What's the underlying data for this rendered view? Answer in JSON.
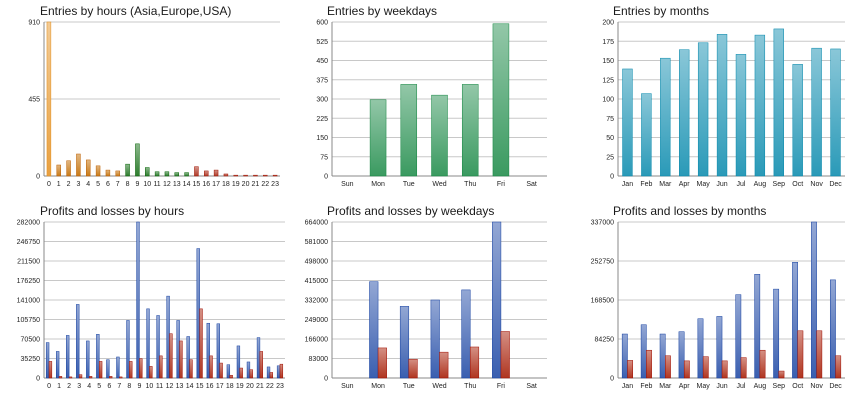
{
  "chart_data": [
    {
      "id": "hours",
      "type": "bar",
      "title": "Entries by hours (Asia,Europe,USA)",
      "categories": [
        "0",
        "1",
        "2",
        "3",
        "4",
        "5",
        "6",
        "7",
        "8",
        "9",
        "10",
        "11",
        "12",
        "13",
        "14",
        "15",
        "16",
        "17",
        "18",
        "19",
        "20",
        "21",
        "22",
        "23"
      ],
      "values": [
        910,
        65,
        90,
        130,
        95,
        60,
        35,
        30,
        70,
        190,
        50,
        25,
        25,
        20,
        20,
        55,
        30,
        35,
        12,
        5,
        5,
        5,
        5,
        5
      ],
      "bar_colors": [
        "#e8a040",
        "#c87a18",
        "#c87a18",
        "#c87a18",
        "#c87a18",
        "#c87a18",
        "#c87a18",
        "#c87a18",
        "#2e7d2e",
        "#2e7d2e",
        "#2e7d2e",
        "#2e7d2e",
        "#2e7d2e",
        "#2e7d2e",
        "#2e7d2e",
        "#b03a28",
        "#b03a28",
        "#b03a28",
        "#b03a28",
        "#b03a28",
        "#b03a28",
        "#b03a28",
        "#b03a28",
        "#b03a28"
      ],
      "ylim": [
        0,
        910
      ],
      "yticks": [
        0,
        455,
        910
      ],
      "ytick_labels": [
        "0",
        "455",
        "910"
      ],
      "grid": true
    },
    {
      "id": "weekdays",
      "type": "bar",
      "title": "Entries by weekdays",
      "categories": [
        "Sun",
        "Mon",
        "Tue",
        "Wed",
        "Thu",
        "Fri",
        "Sat"
      ],
      "values": [
        0,
        297,
        357,
        315,
        357,
        593,
        0
      ],
      "bar_colors": [
        "#3a9a60",
        "#3a9a60",
        "#3a9a60",
        "#3a9a60",
        "#3a9a60",
        "#3a9a60",
        "#3a9a60"
      ],
      "ylim": [
        0,
        600
      ],
      "yticks": [
        0,
        75,
        150,
        225,
        300,
        375,
        450,
        525,
        600
      ],
      "ytick_labels": [
        "0",
        "75",
        "150",
        "225",
        "300",
        "375",
        "450",
        "525",
        "600"
      ],
      "grid": true
    },
    {
      "id": "months",
      "type": "bar",
      "title": "Entries by months",
      "categories": [
        "Jan",
        "Feb",
        "Mar",
        "Apr",
        "May",
        "Jun",
        "Jul",
        "Aug",
        "Sep",
        "Oct",
        "Nov",
        "Dec"
      ],
      "values": [
        139,
        107,
        153,
        164,
        173,
        184,
        158,
        183,
        191,
        145,
        166,
        165
      ],
      "bar_colors": [
        "#2a9ab8",
        "#2a9ab8",
        "#2a9ab8",
        "#2a9ab8",
        "#2a9ab8",
        "#2a9ab8",
        "#2a9ab8",
        "#2a9ab8",
        "#2a9ab8",
        "#2a9ab8",
        "#2a9ab8",
        "#2a9ab8"
      ],
      "ylim": [
        0,
        200
      ],
      "yticks": [
        0,
        25,
        50,
        75,
        100,
        125,
        150,
        175,
        200
      ],
      "ytick_labels": [
        "0",
        "25",
        "50",
        "75",
        "100",
        "125",
        "150",
        "175",
        "200"
      ],
      "grid": true
    },
    {
      "id": "pl_hours",
      "type": "bar",
      "title": "Profits and losses by hours",
      "categories": [
        "0",
        "1",
        "2",
        "3",
        "4",
        "5",
        "6",
        "7",
        "8",
        "9",
        "10",
        "11",
        "12",
        "13",
        "14",
        "15",
        "16",
        "17",
        "18",
        "19",
        "20",
        "21",
        "22",
        "23"
      ],
      "series": [
        {
          "values": [
            64000,
            48000,
            77000,
            133000,
            67000,
            79000,
            33000,
            38000,
            104000,
            282000,
            125000,
            113000,
            148000,
            104000,
            75000,
            234000,
            99000,
            98000,
            24000,
            58000,
            29000,
            73000,
            20000,
            22000
          ],
          "color": "#3a5fb0"
        },
        {
          "values": [
            30000,
            3000,
            2000,
            6000,
            3000,
            30000,
            3000,
            2000,
            30000,
            35000,
            21000,
            40000,
            80000,
            67000,
            33000,
            125000,
            40000,
            27000,
            5000,
            18000,
            15000,
            48000,
            10000,
            25000
          ],
          "color": "#b03520"
        }
      ],
      "ylim": [
        0,
        282000
      ],
      "yticks": [
        0,
        35250,
        70500,
        105750,
        141000,
        176250,
        211500,
        246750,
        282000
      ],
      "ytick_labels": [
        "0",
        "35250",
        "70500",
        "105750",
        "141000",
        "176250",
        "211500",
        "246750",
        "282000"
      ],
      "grid": true
    },
    {
      "id": "pl_weekdays",
      "type": "bar",
      "title": "Profits and losses by weekdays",
      "categories": [
        "Sun",
        "Mon",
        "Tue",
        "Wed",
        "Thu",
        "Fri",
        "Sat"
      ],
      "series": [
        {
          "values": [
            0,
            410000,
            305000,
            332000,
            375000,
            664000,
            0
          ],
          "color": "#3a5fb0"
        },
        {
          "values": [
            0,
            128000,
            80000,
            110000,
            132000,
            198000,
            0
          ],
          "color": "#b03520"
        }
      ],
      "ylim": [
        0,
        664000
      ],
      "yticks": [
        0,
        83000,
        166000,
        249000,
        332000,
        415000,
        498000,
        581000,
        664000
      ],
      "ytick_labels": [
        "0",
        "83000",
        "166000",
        "249000",
        "332000",
        "415000",
        "498000",
        "581000",
        "664000"
      ],
      "grid": true
    },
    {
      "id": "pl_months",
      "type": "bar",
      "title": "Profits and losses by months",
      "categories": [
        "Jan",
        "Feb",
        "Mar",
        "Apr",
        "May",
        "Jun",
        "Jul",
        "Aug",
        "Sep",
        "Oct",
        "Nov",
        "Dec"
      ],
      "series": [
        {
          "values": [
            95000,
            115000,
            95000,
            100000,
            128000,
            133000,
            180000,
            224000,
            192000,
            250000,
            337000,
            212000
          ],
          "color": "#3a5fb0"
        },
        {
          "values": [
            38000,
            60000,
            48000,
            37000,
            46000,
            37000,
            44000,
            60000,
            15000,
            102000,
            102000,
            48000
          ],
          "color": "#b03520"
        }
      ],
      "ylim": [
        0,
        337000
      ],
      "yticks": [
        0,
        84250,
        168500,
        252750,
        337000
      ],
      "ytick_labels": [
        "0",
        "84250",
        "168500",
        "252750",
        "337000"
      ],
      "grid": true
    }
  ]
}
